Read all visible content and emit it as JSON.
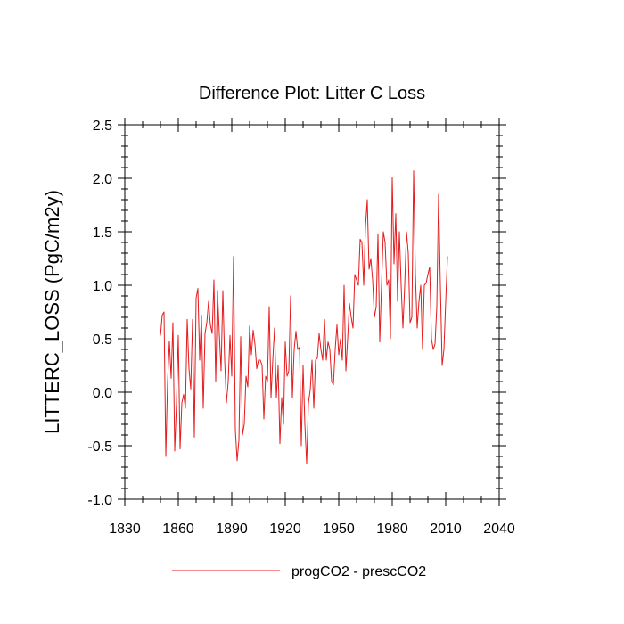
{
  "chart_data": {
    "type": "line",
    "title": "Difference Plot: Litter C Loss",
    "xlabel": "",
    "ylabel": "LITTERC_LOSS  (PgC/m2y)",
    "xlim": [
      1830,
      2040
    ],
    "ylim": [
      -1.0,
      2.5
    ],
    "x_ticks": [
      1830,
      1860,
      1890,
      1920,
      1950,
      1980,
      2010,
      2040
    ],
    "x_tick_labels": [
      "1830",
      "1860",
      "1890",
      "1920",
      "1950",
      "1980",
      "2010",
      "2040"
    ],
    "y_ticks": [
      -1.0,
      -0.5,
      0.0,
      0.5,
      1.0,
      1.5,
      2.0,
      2.5
    ],
    "y_tick_labels": [
      "-1.0",
      "-0.5",
      "0.0",
      "0.5",
      "1.0",
      "1.5",
      "2.0",
      "2.5"
    ],
    "legend_position": "bottom-center",
    "series": [
      {
        "name": "progCO2 - prescCO2",
        "color": "#e41a1c",
        "x_start": 1850,
        "x_step": 1,
        "values": [
          0.53,
          0.72,
          0.75,
          -0.6,
          0.1,
          0.48,
          0.13,
          0.65,
          -0.55,
          -0.1,
          0.53,
          -0.53,
          -0.1,
          -0.02,
          -0.15,
          0.68,
          0.22,
          0.03,
          0.68,
          -0.42,
          0.88,
          0.97,
          0.3,
          0.72,
          -0.15,
          0.55,
          0.65,
          0.85,
          0.63,
          0.55,
          1.05,
          0.1,
          0.95,
          0.55,
          0.2,
          0.95,
          0.3,
          -0.1,
          0.1,
          0.53,
          0.15,
          1.27,
          -0.35,
          -0.64,
          -0.45,
          0.52,
          -0.4,
          -0.3,
          0.15,
          0.05,
          0.62,
          0.35,
          0.58,
          0.45,
          0.22,
          0.3,
          0.3,
          0.25,
          -0.25,
          0.15,
          0.1,
          0.8,
          -0.05,
          0.3,
          0.6,
          -0.05,
          0.25,
          -0.48,
          -0.05,
          -0.3,
          0.47,
          0.15,
          0.2,
          0.9,
          -0.05,
          0.4,
          0.57,
          0.4,
          0.42,
          -0.5,
          0.25,
          -0.3,
          -0.67,
          -0.1,
          0.02,
          0.3,
          -0.15,
          0.3,
          0.32,
          0.55,
          0.4,
          0.3,
          0.68,
          0.3,
          0.47,
          0.4,
          0.1,
          0.07,
          0.4,
          0.63,
          0.35,
          0.5,
          0.3,
          1.0,
          0.2,
          0.5,
          0.83,
          0.7,
          0.6,
          1.1,
          1.05,
          1.0,
          1.43,
          1.4,
          1.0,
          1.55,
          1.8,
          1.15,
          1.25,
          1.05,
          0.7,
          0.8,
          1.48,
          0.47,
          1.0,
          1.5,
          1.4,
          1.0,
          1.05,
          0.5,
          2.01,
          1.2,
          1.67,
          0.85,
          1.5,
          1.0,
          0.6,
          1.0,
          1.5,
          1.3,
          0.65,
          0.7,
          2.07,
          1.1,
          0.6,
          0.85,
          1.0,
          0.4,
          1.0,
          1.02,
          1.1,
          1.17,
          0.5,
          0.4,
          0.45,
          0.8,
          1.85,
          1.0,
          0.25,
          0.4,
          0.85,
          1.27
        ]
      }
    ]
  }
}
